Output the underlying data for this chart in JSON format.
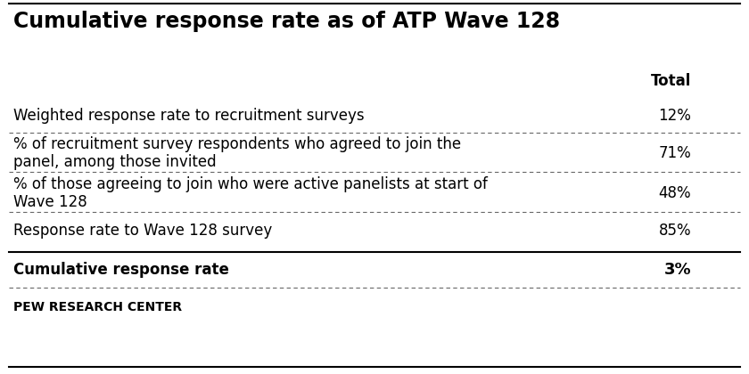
{
  "title": "Cumulative response rate as of ATP Wave 128",
  "col_header": "Total",
  "rows": [
    {
      "label": "Weighted response rate to recruitment surveys",
      "value": "12%",
      "bold": false
    },
    {
      "label": "% of recruitment survey respondents who agreed to join the\npanel, among those invited",
      "value": "71%",
      "bold": false
    },
    {
      "label": "% of those agreeing to join who were active panelists at start of\nWave 128",
      "value": "48%",
      "bold": false
    },
    {
      "label": "Response rate to Wave 128 survey",
      "value": "85%",
      "bold": false
    }
  ],
  "summary_row": {
    "label": "Cumulative response rate",
    "value": "3%"
  },
  "footer": "PEW RESEARCH CENTER",
  "background_color": "#ffffff",
  "title_fontsize": 17,
  "header_fontsize": 12,
  "body_fontsize": 12,
  "footer_fontsize": 10,
  "text_color": "#000000",
  "border_color": "#000000",
  "dotted_color": "#666666"
}
